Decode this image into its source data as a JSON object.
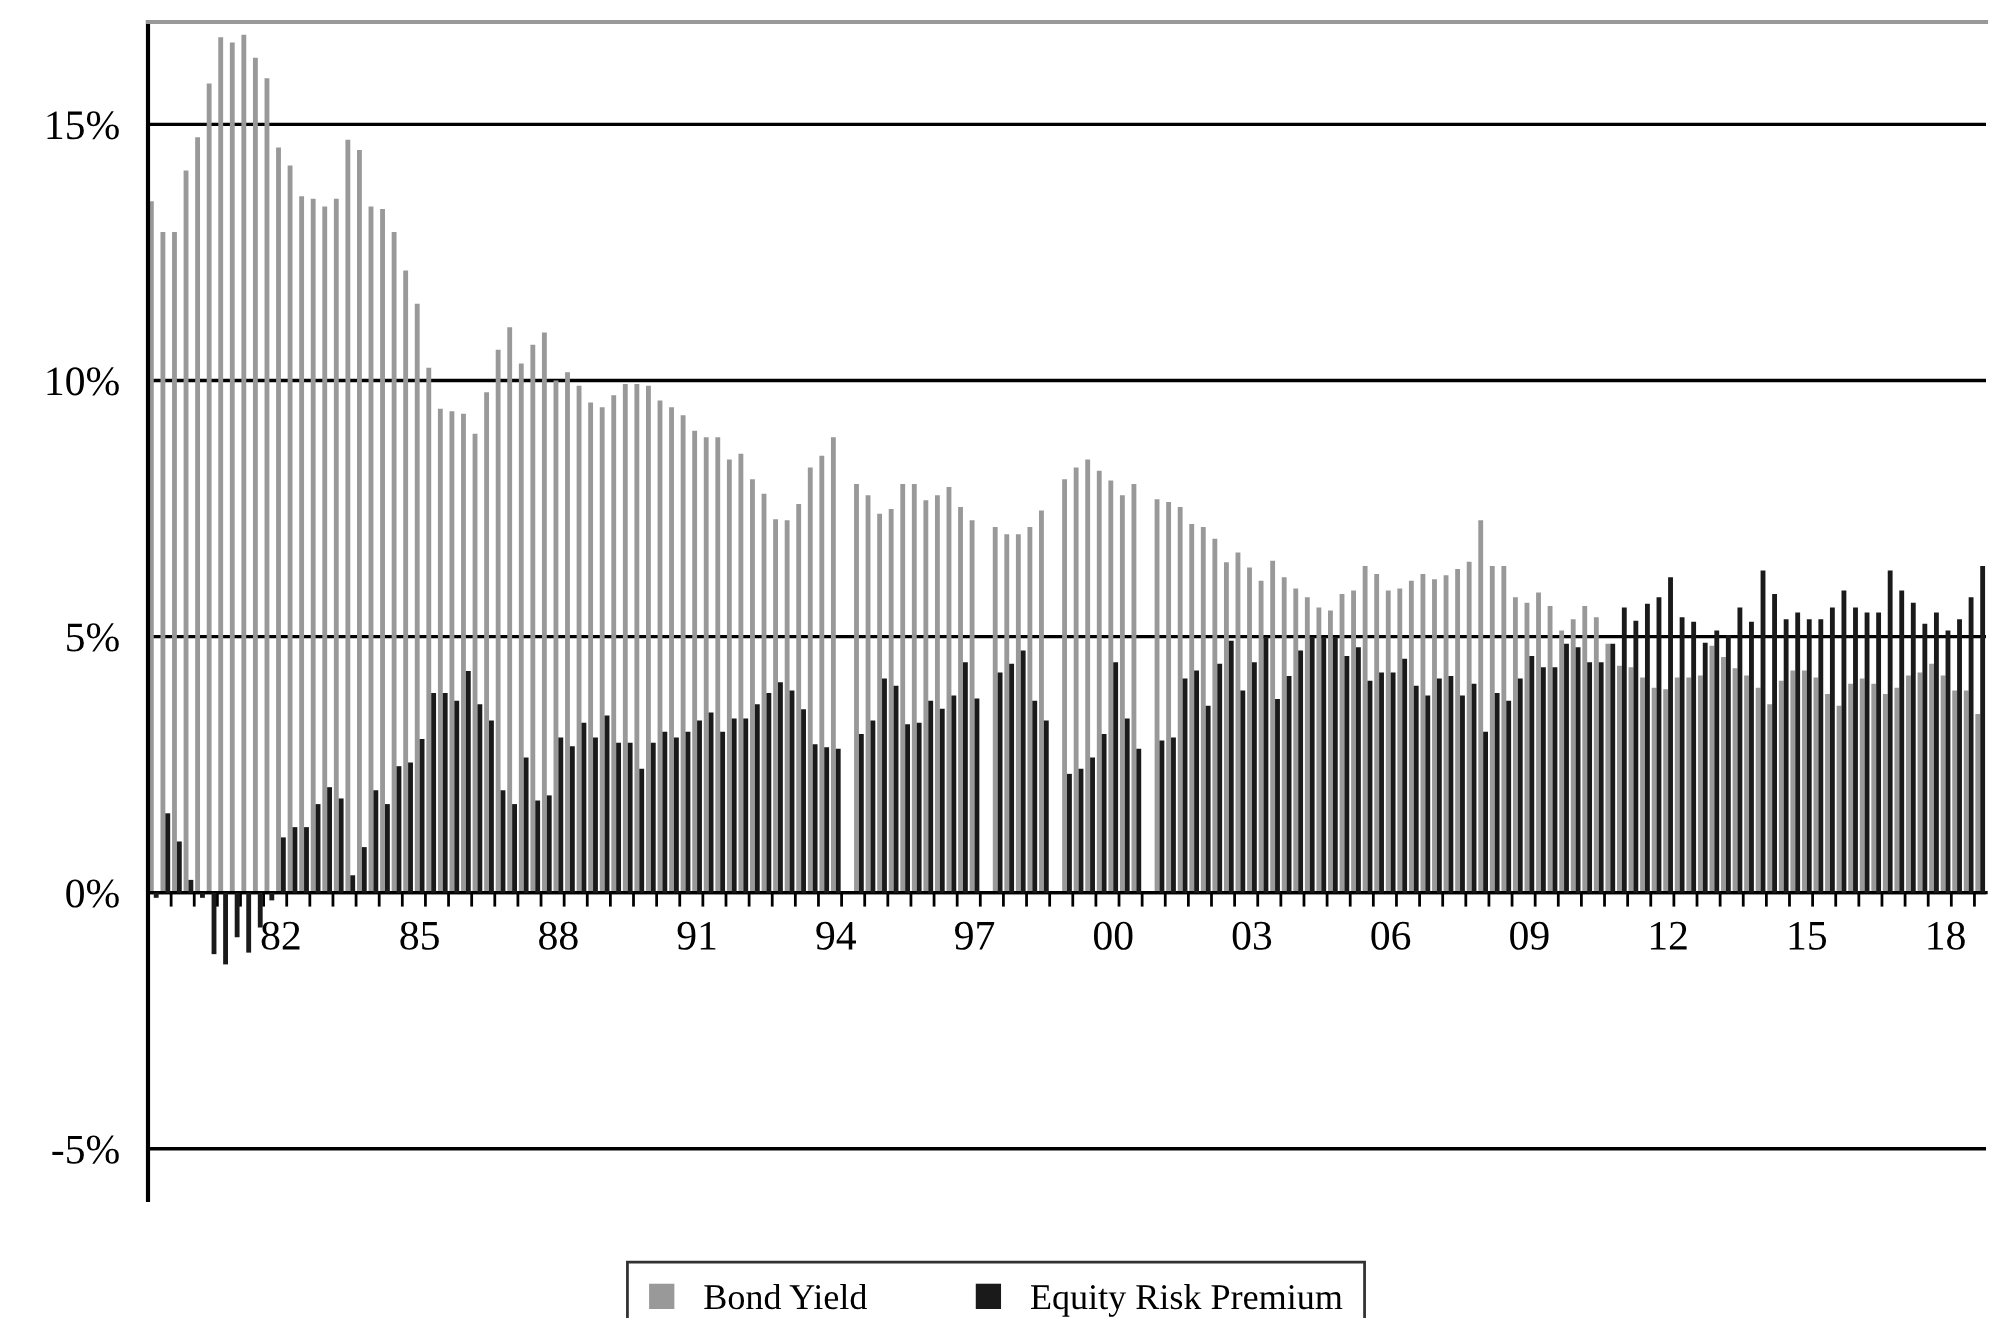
{
  "chart_data": {
    "type": "bar",
    "categories": [
      null,
      null,
      null,
      null,
      null,
      null,
      null,
      null,
      null,
      null,
      null,
      "82",
      null,
      null,
      null,
      null,
      null,
      null,
      null,
      null,
      null,
      null,
      null,
      "85",
      null,
      null,
      null,
      null,
      null,
      null,
      null,
      null,
      null,
      null,
      null,
      "88",
      null,
      null,
      null,
      null,
      null,
      null,
      null,
      null,
      null,
      null,
      null,
      "91",
      null,
      null,
      null,
      null,
      null,
      null,
      null,
      null,
      null,
      null,
      null,
      "94",
      null,
      null,
      null,
      null,
      null,
      null,
      null,
      null,
      null,
      null,
      null,
      "97",
      null,
      null,
      null,
      null,
      null,
      null,
      null,
      null,
      null,
      null,
      null,
      "00",
      null,
      null,
      null,
      null,
      null,
      null,
      null,
      null,
      null,
      null,
      null,
      "03",
      null,
      null,
      null,
      null,
      null,
      null,
      null,
      null,
      null,
      null,
      null,
      "06",
      null,
      null,
      null,
      null,
      null,
      null,
      null,
      null,
      null,
      null,
      null,
      "09",
      null,
      null,
      null,
      null,
      null,
      null,
      null,
      null,
      null,
      null,
      null,
      "12",
      null,
      null,
      null,
      null,
      null,
      null,
      null,
      null,
      null,
      null,
      null,
      "15",
      null,
      null,
      null,
      null,
      null,
      null,
      null,
      null,
      null,
      null,
      null,
      "18",
      null,
      null,
      null
    ],
    "series": [
      {
        "name": "Bond Yield",
        "color": "#999999",
        "values": [
          13.5,
          12.9,
          12.9,
          14.1,
          14.75,
          15.8,
          16.7,
          16.6,
          16.75,
          16.3,
          15.9,
          14.55,
          14.2,
          13.6,
          13.55,
          13.4,
          13.55,
          14.7,
          14.5,
          13.4,
          13.35,
          12.9,
          12.15,
          11.5,
          10.25,
          9.45,
          9.4,
          9.35,
          8.96,
          9.77,
          10.6,
          11.04,
          10.33,
          10.7,
          10.94,
          10.0,
          10.16,
          9.9,
          9.57,
          9.48,
          9.71,
          9.93,
          9.93,
          9.9,
          9.61,
          9.48,
          9.32,
          9.02,
          8.89,
          8.89,
          8.46,
          8.57,
          8.07,
          7.79,
          7.29,
          7.27,
          7.59,
          8.3,
          8.53,
          8.89,
          null,
          7.98,
          7.76,
          7.4,
          7.49,
          7.98,
          7.98,
          7.66,
          7.76,
          7.92,
          7.53,
          7.27,
          null,
          7.14,
          7.0,
          7.0,
          7.14,
          7.46,
          null,
          8.07,
          8.3,
          8.46,
          8.24,
          8.05,
          7.76,
          7.98,
          null,
          7.68,
          7.63,
          7.53,
          7.2,
          7.14,
          6.91,
          6.45,
          6.64,
          6.35,
          6.09,
          6.48,
          6.16,
          5.94,
          5.77,
          5.57,
          5.51,
          5.83,
          5.9,
          6.38,
          6.22,
          5.9,
          5.94,
          6.09,
          6.22,
          6.12,
          6.2,
          6.32,
          6.46,
          7.27,
          6.38,
          6.38,
          5.77,
          5.66,
          5.86,
          5.6,
          5.12,
          5.34,
          5.6,
          5.38,
          4.86,
          4.43,
          4.4,
          4.2,
          4.0,
          3.97,
          4.2,
          4.2,
          4.24,
          4.82,
          4.6,
          4.38,
          4.24,
          4.0,
          3.68,
          4.14,
          4.34,
          4.34,
          4.2,
          3.88,
          3.65,
          4.08,
          4.18,
          4.08,
          3.88,
          4.0,
          4.24,
          4.3,
          4.47,
          4.24,
          3.95,
          3.95,
          3.49
        ]
      },
      {
        "name": "Equity Risk Premium",
        "color": "#1a1a1a",
        "values": [
          -0.1,
          1.55,
          1.0,
          0.25,
          -0.1,
          -1.2,
          -1.4,
          -0.87,
          -1.17,
          -0.68,
          -0.15,
          1.08,
          1.28,
          1.28,
          1.73,
          2.06,
          1.84,
          0.34,
          0.89,
          2.0,
          1.73,
          2.47,
          2.54,
          3.0,
          3.9,
          3.9,
          3.75,
          4.33,
          3.68,
          3.36,
          2.0,
          1.73,
          2.64,
          1.8,
          1.9,
          3.03,
          2.86,
          3.32,
          3.03,
          3.46,
          2.93,
          2.93,
          2.42,
          2.93,
          3.14,
          3.03,
          3.14,
          3.36,
          3.52,
          3.14,
          3.4,
          3.4,
          3.68,
          3.9,
          4.11,
          3.95,
          3.58,
          2.9,
          2.84,
          2.81,
          null,
          3.1,
          3.36,
          4.18,
          4.04,
          3.29,
          3.32,
          3.75,
          3.59,
          3.85,
          4.5,
          3.79,
          null,
          4.3,
          4.47,
          4.73,
          3.75,
          3.36,
          null,
          2.32,
          2.42,
          2.64,
          3.1,
          4.5,
          3.4,
          2.81,
          null,
          2.97,
          3.03,
          4.18,
          4.34,
          3.65,
          4.47,
          4.92,
          3.95,
          4.5,
          4.99,
          3.78,
          4.23,
          4.73,
          4.99,
          4.99,
          4.99,
          4.62,
          4.79,
          4.14,
          4.3,
          4.3,
          4.57,
          4.04,
          3.85,
          4.18,
          4.23,
          3.85,
          4.08,
          3.14,
          3.9,
          3.75,
          4.18,
          4.62,
          4.4,
          4.4,
          4.86,
          4.79,
          4.5,
          4.5,
          4.86,
          5.57,
          5.31,
          5.64,
          5.77,
          6.16,
          5.38,
          5.29,
          4.88,
          5.12,
          5.03,
          5.57,
          5.29,
          6.29,
          5.83,
          5.34,
          5.47,
          5.34,
          5.34,
          5.57,
          5.9,
          5.57,
          5.47,
          5.47,
          6.29,
          5.9,
          5.66,
          5.25,
          5.47,
          5.12,
          5.34,
          5.77,
          6.38
        ]
      }
    ],
    "ylim": [
      -6,
      17
    ],
    "yticks": [
      {
        "value": -5,
        "label": "-5%"
      },
      {
        "value": 0,
        "label": "0%"
      },
      {
        "value": 5,
        "label": "5%"
      },
      {
        "value": 10,
        "label": "10%"
      },
      {
        "value": 15,
        "label": "15%"
      }
    ],
    "grid": "y",
    "legend": "bottom"
  }
}
